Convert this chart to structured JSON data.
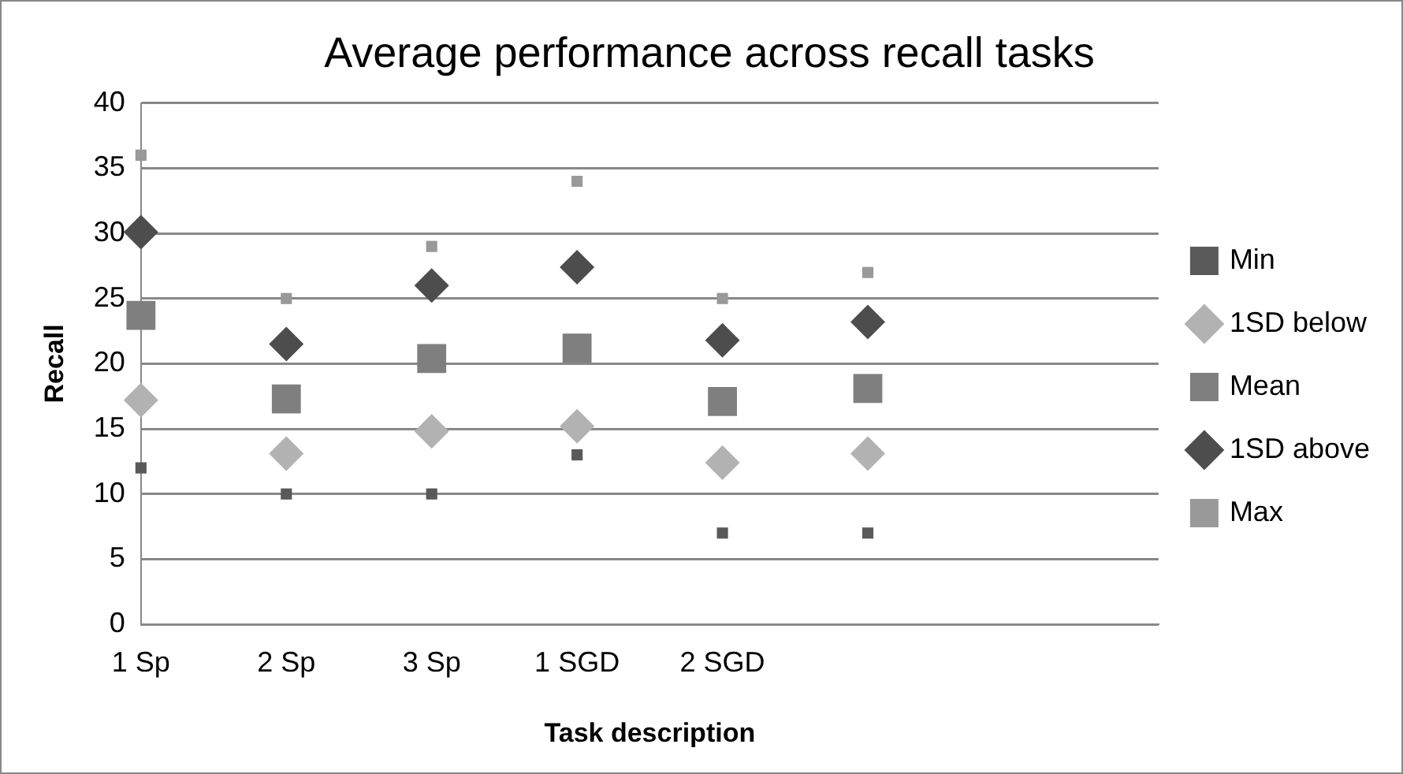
{
  "chart_data": {
    "type": "scatter",
    "title": "Average performance across recall tasks",
    "xlabel": "Task description",
    "ylabel": "Recall",
    "categories": [
      "1 Sp",
      "2 Sp",
      "3 Sp",
      "1 SGD",
      "2 SGD",
      null,
      null,
      null
    ],
    "series": [
      {
        "name": "Min",
        "color": "#595959",
        "marker": "square",
        "values": [
          12,
          10,
          10,
          13,
          7,
          7,
          null,
          null
        ]
      },
      {
        "name": "1SD below",
        "color": "#b2b2b2",
        "marker": "diamond",
        "values": [
          17.2,
          13.1,
          14.8,
          15.2,
          12.4,
          13.1,
          null,
          null
        ]
      },
      {
        "name": "Mean",
        "color": "#7f7f7f",
        "marker": "square",
        "values": [
          23.7,
          17.3,
          20.4,
          21.2,
          17.1,
          18.1,
          null,
          null
        ]
      },
      {
        "name": "1SD above",
        "color": "#4d4d4d",
        "marker": "diamond",
        "values": [
          30.1,
          21.5,
          26.0,
          27.4,
          21.8,
          23.2,
          null,
          null
        ]
      },
      {
        "name": "Max",
        "color": "#999999",
        "marker": "square",
        "values": [
          36,
          25,
          29,
          34,
          25,
          27,
          null,
          null
        ]
      }
    ],
    "ylim": [
      0,
      40
    ],
    "yticks": [
      0,
      5,
      10,
      15,
      20,
      25,
      30,
      35,
      40
    ],
    "grid": "y",
    "legend": "right"
  }
}
